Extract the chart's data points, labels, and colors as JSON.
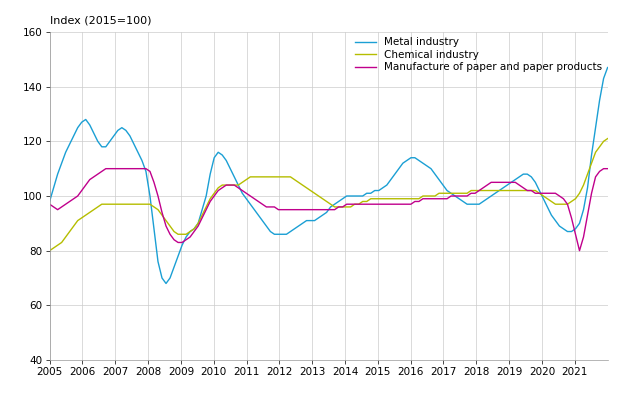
{
  "ylabel": "Index (2015=100)",
  "ylim": [
    40,
    160
  ],
  "yticks": [
    40,
    60,
    80,
    100,
    120,
    140,
    160
  ],
  "xlim": [
    2005.0,
    2022.0
  ],
  "xtick_labels": [
    "2005",
    "2006",
    "2007",
    "2008",
    "2009",
    "2010",
    "2011",
    "2012",
    "2013",
    "2014",
    "2015",
    "2016",
    "2017",
    "2018",
    "2019",
    "2020",
    "2021"
  ],
  "legend": [
    "Metal industry",
    "Chemical industry",
    "Manufacture of paper and paper products"
  ],
  "colors": [
    "#1b9fd4",
    "#b5bd00",
    "#c0008c"
  ],
  "metal": [
    98,
    103,
    108,
    112,
    116,
    119,
    122,
    125,
    127,
    128,
    126,
    123,
    120,
    118,
    118,
    120,
    122,
    124,
    125,
    124,
    122,
    119,
    116,
    113,
    109,
    100,
    88,
    76,
    70,
    68,
    70,
    74,
    78,
    82,
    85,
    87,
    88,
    90,
    95,
    100,
    108,
    114,
    116,
    115,
    113,
    110,
    107,
    104,
    101,
    99,
    97,
    95,
    93,
    91,
    89,
    87,
    86,
    86,
    86,
    86,
    87,
    88,
    89,
    90,
    91,
    91,
    91,
    92,
    93,
    94,
    96,
    97,
    98,
    99,
    100,
    100,
    100,
    100,
    100,
    101,
    101,
    102,
    102,
    103,
    104,
    106,
    108,
    110,
    112,
    113,
    114,
    114,
    113,
    112,
    111,
    110,
    108,
    106,
    104,
    102,
    101,
    100,
    99,
    98,
    97,
    97,
    97,
    97,
    98,
    99,
    100,
    101,
    102,
    103,
    104,
    105,
    106,
    107,
    108,
    108,
    107,
    105,
    102,
    99,
    96,
    93,
    91,
    89,
    88,
    87,
    87,
    88,
    90,
    95,
    103,
    115,
    125,
    135,
    143,
    147
  ],
  "chemical": [
    80,
    81,
    82,
    83,
    85,
    87,
    89,
    91,
    92,
    93,
    94,
    95,
    96,
    97,
    97,
    97,
    97,
    97,
    97,
    97,
    97,
    97,
    97,
    97,
    97,
    97,
    96,
    95,
    93,
    91,
    89,
    87,
    86,
    86,
    86,
    87,
    88,
    90,
    93,
    96,
    99,
    101,
    103,
    104,
    104,
    104,
    104,
    104,
    105,
    106,
    107,
    107,
    107,
    107,
    107,
    107,
    107,
    107,
    107,
    107,
    107,
    106,
    105,
    104,
    103,
    102,
    101,
    100,
    99,
    98,
    97,
    96,
    96,
    96,
    96,
    96,
    97,
    97,
    98,
    98,
    99,
    99,
    99,
    99,
    99,
    99,
    99,
    99,
    99,
    99,
    99,
    99,
    99,
    100,
    100,
    100,
    100,
    101,
    101,
    101,
    101,
    101,
    101,
    101,
    101,
    102,
    102,
    102,
    102,
    102,
    102,
    102,
    102,
    102,
    102,
    102,
    102,
    102,
    102,
    102,
    102,
    102,
    101,
    100,
    99,
    98,
    97,
    97,
    97,
    97,
    98,
    99,
    101,
    104,
    108,
    112,
    116,
    118,
    120,
    121
  ],
  "paper": [
    97,
    96,
    95,
    96,
    97,
    98,
    99,
    100,
    102,
    104,
    106,
    107,
    108,
    109,
    110,
    110,
    110,
    110,
    110,
    110,
    110,
    110,
    110,
    110,
    110,
    109,
    105,
    100,
    94,
    89,
    86,
    84,
    83,
    83,
    84,
    85,
    87,
    89,
    92,
    95,
    98,
    100,
    102,
    103,
    104,
    104,
    104,
    103,
    102,
    101,
    100,
    99,
    98,
    97,
    96,
    96,
    96,
    95,
    95,
    95,
    95,
    95,
    95,
    95,
    95,
    95,
    95,
    95,
    95,
    95,
    95,
    95,
    96,
    96,
    97,
    97,
    97,
    97,
    97,
    97,
    97,
    97,
    97,
    97,
    97,
    97,
    97,
    97,
    97,
    97,
    97,
    98,
    98,
    99,
    99,
    99,
    99,
    99,
    99,
    99,
    100,
    100,
    100,
    100,
    100,
    101,
    101,
    102,
    103,
    104,
    105,
    105,
    105,
    105,
    105,
    105,
    105,
    104,
    103,
    102,
    102,
    101,
    101,
    101,
    101,
    101,
    101,
    100,
    99,
    97,
    92,
    86,
    80,
    85,
    93,
    101,
    107,
    109,
    110,
    110
  ]
}
